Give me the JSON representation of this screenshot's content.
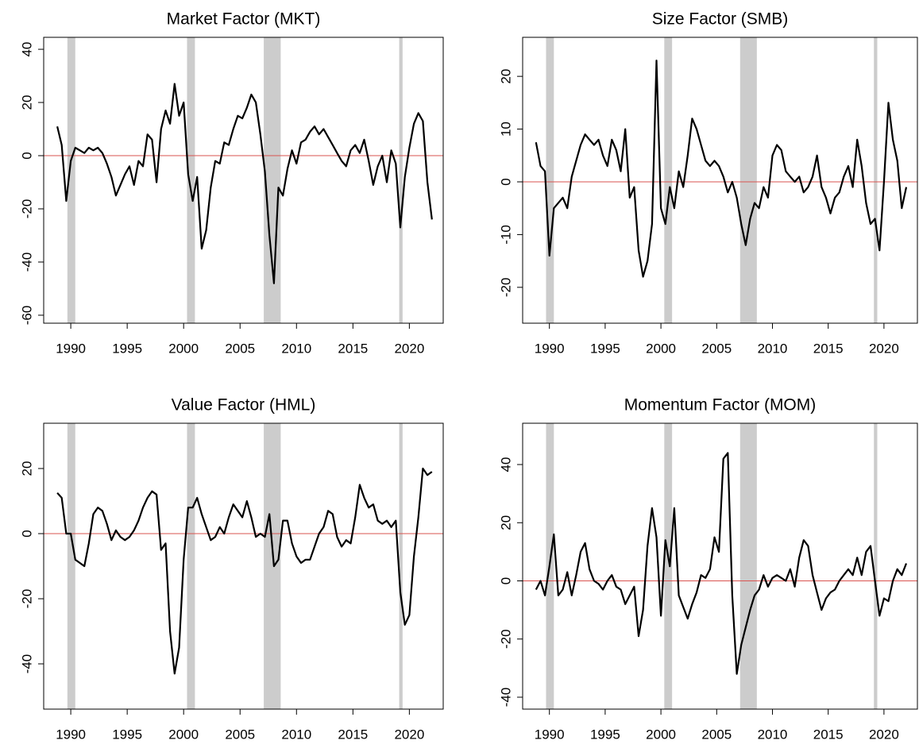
{
  "chart_data": [
    {
      "type": "line",
      "title": "Market Factor (MKT)",
      "x": [
        1988.8,
        1989.2,
        1989.6,
        1990.0,
        1990.4,
        1990.8,
        1991.2,
        1991.6,
        1992.0,
        1992.4,
        1992.8,
        1993.2,
        1993.6,
        1994.0,
        1994.4,
        1994.8,
        1995.2,
        1995.6,
        1996.0,
        1996.4,
        1996.8,
        1997.2,
        1997.6,
        1998.0,
        1998.4,
        1998.8,
        1999.2,
        1999.6,
        2000.0,
        2000.4,
        2000.8,
        2001.2,
        2001.6,
        2002.0,
        2002.4,
        2002.8,
        2003.2,
        2003.6,
        2004.0,
        2004.4,
        2004.8,
        2005.2,
        2005.6,
        2006.0,
        2006.4,
        2006.8,
        2007.2,
        2007.6,
        2008.0,
        2008.4,
        2008.8,
        2009.2,
        2009.6,
        2010.0,
        2010.4,
        2010.8,
        2011.2,
        2011.6,
        2012.0,
        2012.4,
        2012.8,
        2013.2,
        2013.6,
        2014.0,
        2014.4,
        2014.8,
        2015.2,
        2015.6,
        2016.0,
        2016.4,
        2016.8,
        2017.2,
        2017.6,
        2018.0,
        2018.4,
        2018.8,
        2019.2,
        2019.6,
        2020.0,
        2020.4,
        2020.8,
        2021.2,
        2021.6,
        2022.0
      ],
      "values": [
        11,
        4,
        -17,
        -2,
        3,
        2,
        1,
        3,
        2,
        3,
        1,
        -3,
        -8,
        -15,
        -11,
        -7,
        -4,
        -11,
        -2,
        -4,
        8,
        6,
        -10,
        10,
        17,
        12,
        27,
        15,
        20,
        -7,
        -17,
        -8,
        -35,
        -28,
        -12,
        -2,
        -3,
        5,
        4,
        10,
        15,
        14,
        18,
        23,
        20,
        8,
        -6,
        -30,
        -48,
        -12,
        -15,
        -5,
        2,
        -3,
        5,
        6,
        9,
        11,
        8,
        10,
        7,
        4,
        1,
        -2,
        -4,
        2,
        4,
        1,
        6,
        -2,
        -11,
        -4,
        0,
        -10,
        2,
        -3,
        -27,
        -8,
        3,
        12,
        16,
        13,
        -10,
        -24
      ],
      "color": "#000000",
      "xlim": [
        1987.6,
        2023.0
      ],
      "xticks": [
        1990,
        1995,
        2000,
        2005,
        2010,
        2015,
        2020
      ],
      "ylim": [
        -63,
        44.5
      ],
      "yticks": [
        -60,
        -40,
        -20,
        0,
        20,
        40
      ],
      "hline": 0,
      "hline_color": "#d9534f",
      "shaded_regions": [
        [
          1989.7,
          1990.4
        ],
        [
          2000.3,
          2001.0
        ],
        [
          2007.1,
          2008.6
        ],
        [
          2019.1,
          2019.4
        ]
      ],
      "shade_color": "#cccccc"
    },
    {
      "type": "line",
      "title": "Size Factor (SMB)",
      "x": [
        1988.8,
        1989.2,
        1989.6,
        1990.0,
        1990.4,
        1990.8,
        1991.2,
        1991.6,
        1992.0,
        1992.4,
        1992.8,
        1993.2,
        1993.6,
        1994.0,
        1994.4,
        1994.8,
        1995.2,
        1995.6,
        1996.0,
        1996.4,
        1996.8,
        1997.2,
        1997.6,
        1998.0,
        1998.4,
        1998.8,
        1999.2,
        1999.6,
        2000.0,
        2000.4,
        2000.8,
        2001.2,
        2001.6,
        2002.0,
        2002.4,
        2002.8,
        2003.2,
        2003.6,
        2004.0,
        2004.4,
        2004.8,
        2005.2,
        2005.6,
        2006.0,
        2006.4,
        2006.8,
        2007.2,
        2007.6,
        2008.0,
        2008.4,
        2008.8,
        2009.2,
        2009.6,
        2010.0,
        2010.4,
        2010.8,
        2011.2,
        2011.6,
        2012.0,
        2012.4,
        2012.8,
        2013.2,
        2013.6,
        2014.0,
        2014.4,
        2014.8,
        2015.2,
        2015.6,
        2016.0,
        2016.4,
        2016.8,
        2017.2,
        2017.6,
        2018.0,
        2018.4,
        2018.8,
        2019.2,
        2019.6,
        2020.0,
        2020.4,
        2020.8,
        2021.2,
        2021.6,
        2022.0
      ],
      "values": [
        7.5,
        3,
        2,
        -14,
        -5,
        -4,
        -3,
        -5,
        1,
        4,
        7,
        9,
        8,
        7,
        8,
        5,
        3,
        8,
        6,
        2,
        10,
        -3,
        -1,
        -13,
        -18,
        -15,
        -8,
        23,
        -5,
        -8,
        -1,
        -5,
        2,
        -1,
        5,
        12,
        10,
        7,
        4,
        3,
        4,
        3,
        1,
        -2,
        0,
        -3,
        -8,
        -12,
        -7,
        -4,
        -5,
        -1,
        -3,
        5,
        7,
        6,
        2,
        1,
        0,
        1,
        -2,
        -1,
        1,
        5,
        -1,
        -3,
        -6,
        -3,
        -2,
        1,
        3,
        -1,
        8,
        3,
        -4,
        -8,
        -7,
        -13,
        0,
        15,
        8,
        4,
        -5,
        -1
      ],
      "color": "#000000",
      "xlim": [
        1987.6,
        2023.0
      ],
      "xticks": [
        1990,
        1995,
        2000,
        2005,
        2010,
        2015,
        2020
      ],
      "ylim": [
        -26.8,
        27.4
      ],
      "yticks": [
        -20,
        -10,
        0,
        10,
        20
      ],
      "hline": 0,
      "hline_color": "#d9534f",
      "shaded_regions": [
        [
          1989.7,
          1990.4
        ],
        [
          2000.3,
          2001.0
        ],
        [
          2007.1,
          2008.6
        ],
        [
          2019.1,
          2019.4
        ]
      ],
      "shade_color": "#cccccc"
    },
    {
      "type": "line",
      "title": "Value Factor (HML)",
      "x": [
        1988.8,
        1989.2,
        1989.6,
        1990.0,
        1990.4,
        1990.8,
        1991.2,
        1991.6,
        1992.0,
        1992.4,
        1992.8,
        1993.2,
        1993.6,
        1994.0,
        1994.4,
        1994.8,
        1995.2,
        1995.6,
        1996.0,
        1996.4,
        1996.8,
        1997.2,
        1997.6,
        1998.0,
        1998.4,
        1998.8,
        1999.2,
        1999.6,
        2000.0,
        2000.4,
        2000.8,
        2001.2,
        2001.6,
        2002.0,
        2002.4,
        2002.8,
        2003.2,
        2003.6,
        2004.0,
        2004.4,
        2004.8,
        2005.2,
        2005.6,
        2006.0,
        2006.4,
        2006.8,
        2007.2,
        2007.6,
        2008.0,
        2008.4,
        2008.8,
        2009.2,
        2009.6,
        2010.0,
        2010.4,
        2010.8,
        2011.2,
        2011.6,
        2012.0,
        2012.4,
        2012.8,
        2013.2,
        2013.6,
        2014.0,
        2014.4,
        2014.8,
        2015.2,
        2015.6,
        2016.0,
        2016.4,
        2016.8,
        2017.2,
        2017.6,
        2018.0,
        2018.4,
        2018.8,
        2019.2,
        2019.6,
        2020.0,
        2020.4,
        2020.8,
        2021.2,
        2021.6,
        2022.0
      ],
      "values": [
        12.5,
        11,
        0,
        0,
        -8,
        -9,
        -10,
        -3,
        6,
        8,
        7,
        3,
        -2,
        1,
        -1,
        -2,
        -1,
        1,
        4,
        8,
        11,
        13,
        12,
        -5,
        -3,
        -30,
        -43,
        -35,
        -8,
        8,
        8,
        11,
        6,
        2,
        -2,
        -1,
        2,
        0,
        5,
        9,
        7,
        5,
        10,
        5,
        -1,
        0,
        -1,
        6,
        -10,
        -8,
        4,
        4,
        -3,
        -7,
        -9,
        -8,
        -8,
        -4,
        0,
        2,
        7,
        6,
        -1,
        -4,
        -2,
        -3,
        5,
        15,
        11,
        8,
        9,
        4,
        3,
        4,
        2,
        4,
        -18,
        -28,
        -25,
        -7,
        5,
        20,
        18,
        19
      ],
      "color": "#000000",
      "xlim": [
        1987.6,
        2023.0
      ],
      "xticks": [
        1990,
        1995,
        2000,
        2005,
        2010,
        2015,
        2020
      ],
      "ylim": [
        -53.9,
        33.9
      ],
      "yticks": [
        -40,
        -20,
        0,
        20
      ],
      "hline": 0,
      "hline_color": "#d9534f",
      "shaded_regions": [
        [
          1989.7,
          1990.4
        ],
        [
          2000.3,
          2001.0
        ],
        [
          2007.1,
          2008.6
        ],
        [
          2019.1,
          2019.4
        ]
      ],
      "shade_color": "#cccccc"
    },
    {
      "type": "line",
      "title": "Momentum Factor (MOM)",
      "x": [
        1988.8,
        1989.2,
        1989.6,
        1990.0,
        1990.4,
        1990.8,
        1991.2,
        1991.6,
        1992.0,
        1992.4,
        1992.8,
        1993.2,
        1993.6,
        1994.0,
        1994.4,
        1994.8,
        1995.2,
        1995.6,
        1996.0,
        1996.4,
        1996.8,
        1997.2,
        1997.6,
        1998.0,
        1998.4,
        1998.8,
        1999.2,
        1999.6,
        2000.0,
        2000.4,
        2000.8,
        2001.2,
        2001.6,
        2002.0,
        2002.4,
        2002.8,
        2003.2,
        2003.6,
        2004.0,
        2004.4,
        2004.8,
        2005.2,
        2005.6,
        2006.0,
        2006.4,
        2006.8,
        2007.2,
        2007.6,
        2008.0,
        2008.4,
        2008.8,
        2009.2,
        2009.6,
        2010.0,
        2010.4,
        2010.8,
        2011.2,
        2011.6,
        2012.0,
        2012.4,
        2012.8,
        2013.2,
        2013.6,
        2014.0,
        2014.4,
        2014.8,
        2015.2,
        2015.6,
        2016.0,
        2016.4,
        2016.8,
        2017.2,
        2017.6,
        2018.0,
        2018.4,
        2018.8,
        2019.2,
        2019.6,
        2020.0,
        2020.4,
        2020.8,
        2021.2,
        2021.6,
        2022.0
      ],
      "values": [
        -3,
        0,
        -5,
        5,
        16,
        -5,
        -3,
        3,
        -5,
        2,
        10,
        13,
        4,
        0,
        -1,
        -3,
        0,
        2,
        -2,
        -3,
        -8,
        -5,
        -2,
        -19,
        -10,
        12,
        25,
        15,
        -12,
        14,
        5,
        25,
        -5,
        -9,
        -13,
        -8,
        -4,
        2,
        1,
        4,
        15,
        10,
        42,
        44,
        -5,
        -32,
        -22,
        -16,
        -10,
        -5,
        -3,
        2,
        -2,
        1,
        2,
        1,
        0,
        4,
        -2,
        8,
        14,
        12,
        2,
        -4,
        -10,
        -6,
        -4,
        -3,
        0,
        2,
        4,
        2,
        8,
        2,
        10,
        12,
        0,
        -12,
        -6,
        -7,
        0,
        4,
        2,
        6
      ],
      "color": "#000000",
      "xlim": [
        1987.6,
        2023.0
      ],
      "xticks": [
        1990,
        1995,
        2000,
        2005,
        2010,
        2015,
        2020
      ],
      "ylim": [
        -44.1,
        54.2
      ],
      "yticks": [
        -40,
        -20,
        0,
        20,
        40
      ],
      "hline": 0,
      "hline_color": "#d9534f",
      "shaded_regions": [
        [
          1989.7,
          1990.4
        ],
        [
          2000.3,
          2001.0
        ],
        [
          2007.1,
          2008.6
        ],
        [
          2019.1,
          2019.4
        ]
      ],
      "shade_color": "#cccccc"
    }
  ]
}
